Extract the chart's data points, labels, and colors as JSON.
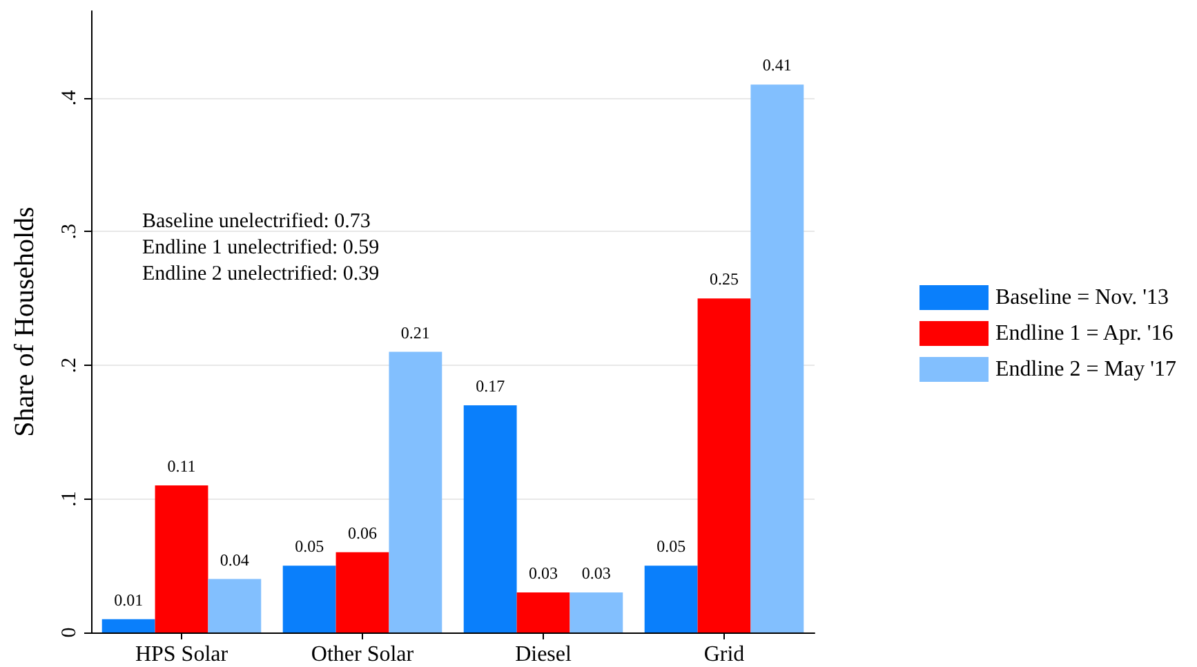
{
  "chart_data": {
    "type": "bar",
    "categories": [
      "HPS Solar",
      "Other Solar",
      "Diesel",
      "Grid"
    ],
    "series": [
      {
        "name": "Baseline = Nov. '13",
        "color": "#0a7ffb",
        "values": [
          0.01,
          0.05,
          0.17,
          0.05
        ]
      },
      {
        "name": "Endline 1 = Apr. '16",
        "color": "#ff0000",
        "values": [
          0.11,
          0.06,
          0.03,
          0.25
        ]
      },
      {
        "name": "Endline 2 = May '17",
        "color": "#82bffe",
        "values": [
          0.04,
          0.21,
          0.03,
          0.41
        ]
      }
    ],
    "ylabel": "Share of Households",
    "ylim": [
      0,
      0.465
    ],
    "yticks": [
      0,
      {
        "value": 0.1,
        "label": ".1"
      },
      {
        "value": 0.2,
        "label": ".2"
      },
      {
        "value": 0.3,
        "label": ".3"
      },
      {
        "value": 0.4,
        "label": ".4"
      }
    ],
    "grid": "y",
    "legend": "right",
    "data_labels": true,
    "annotations": [
      "Baseline unelectrified: 0.73",
      "Endline 1 unelectrified: 0.59",
      "Endline 2 unelectrified: 0.39"
    ]
  }
}
